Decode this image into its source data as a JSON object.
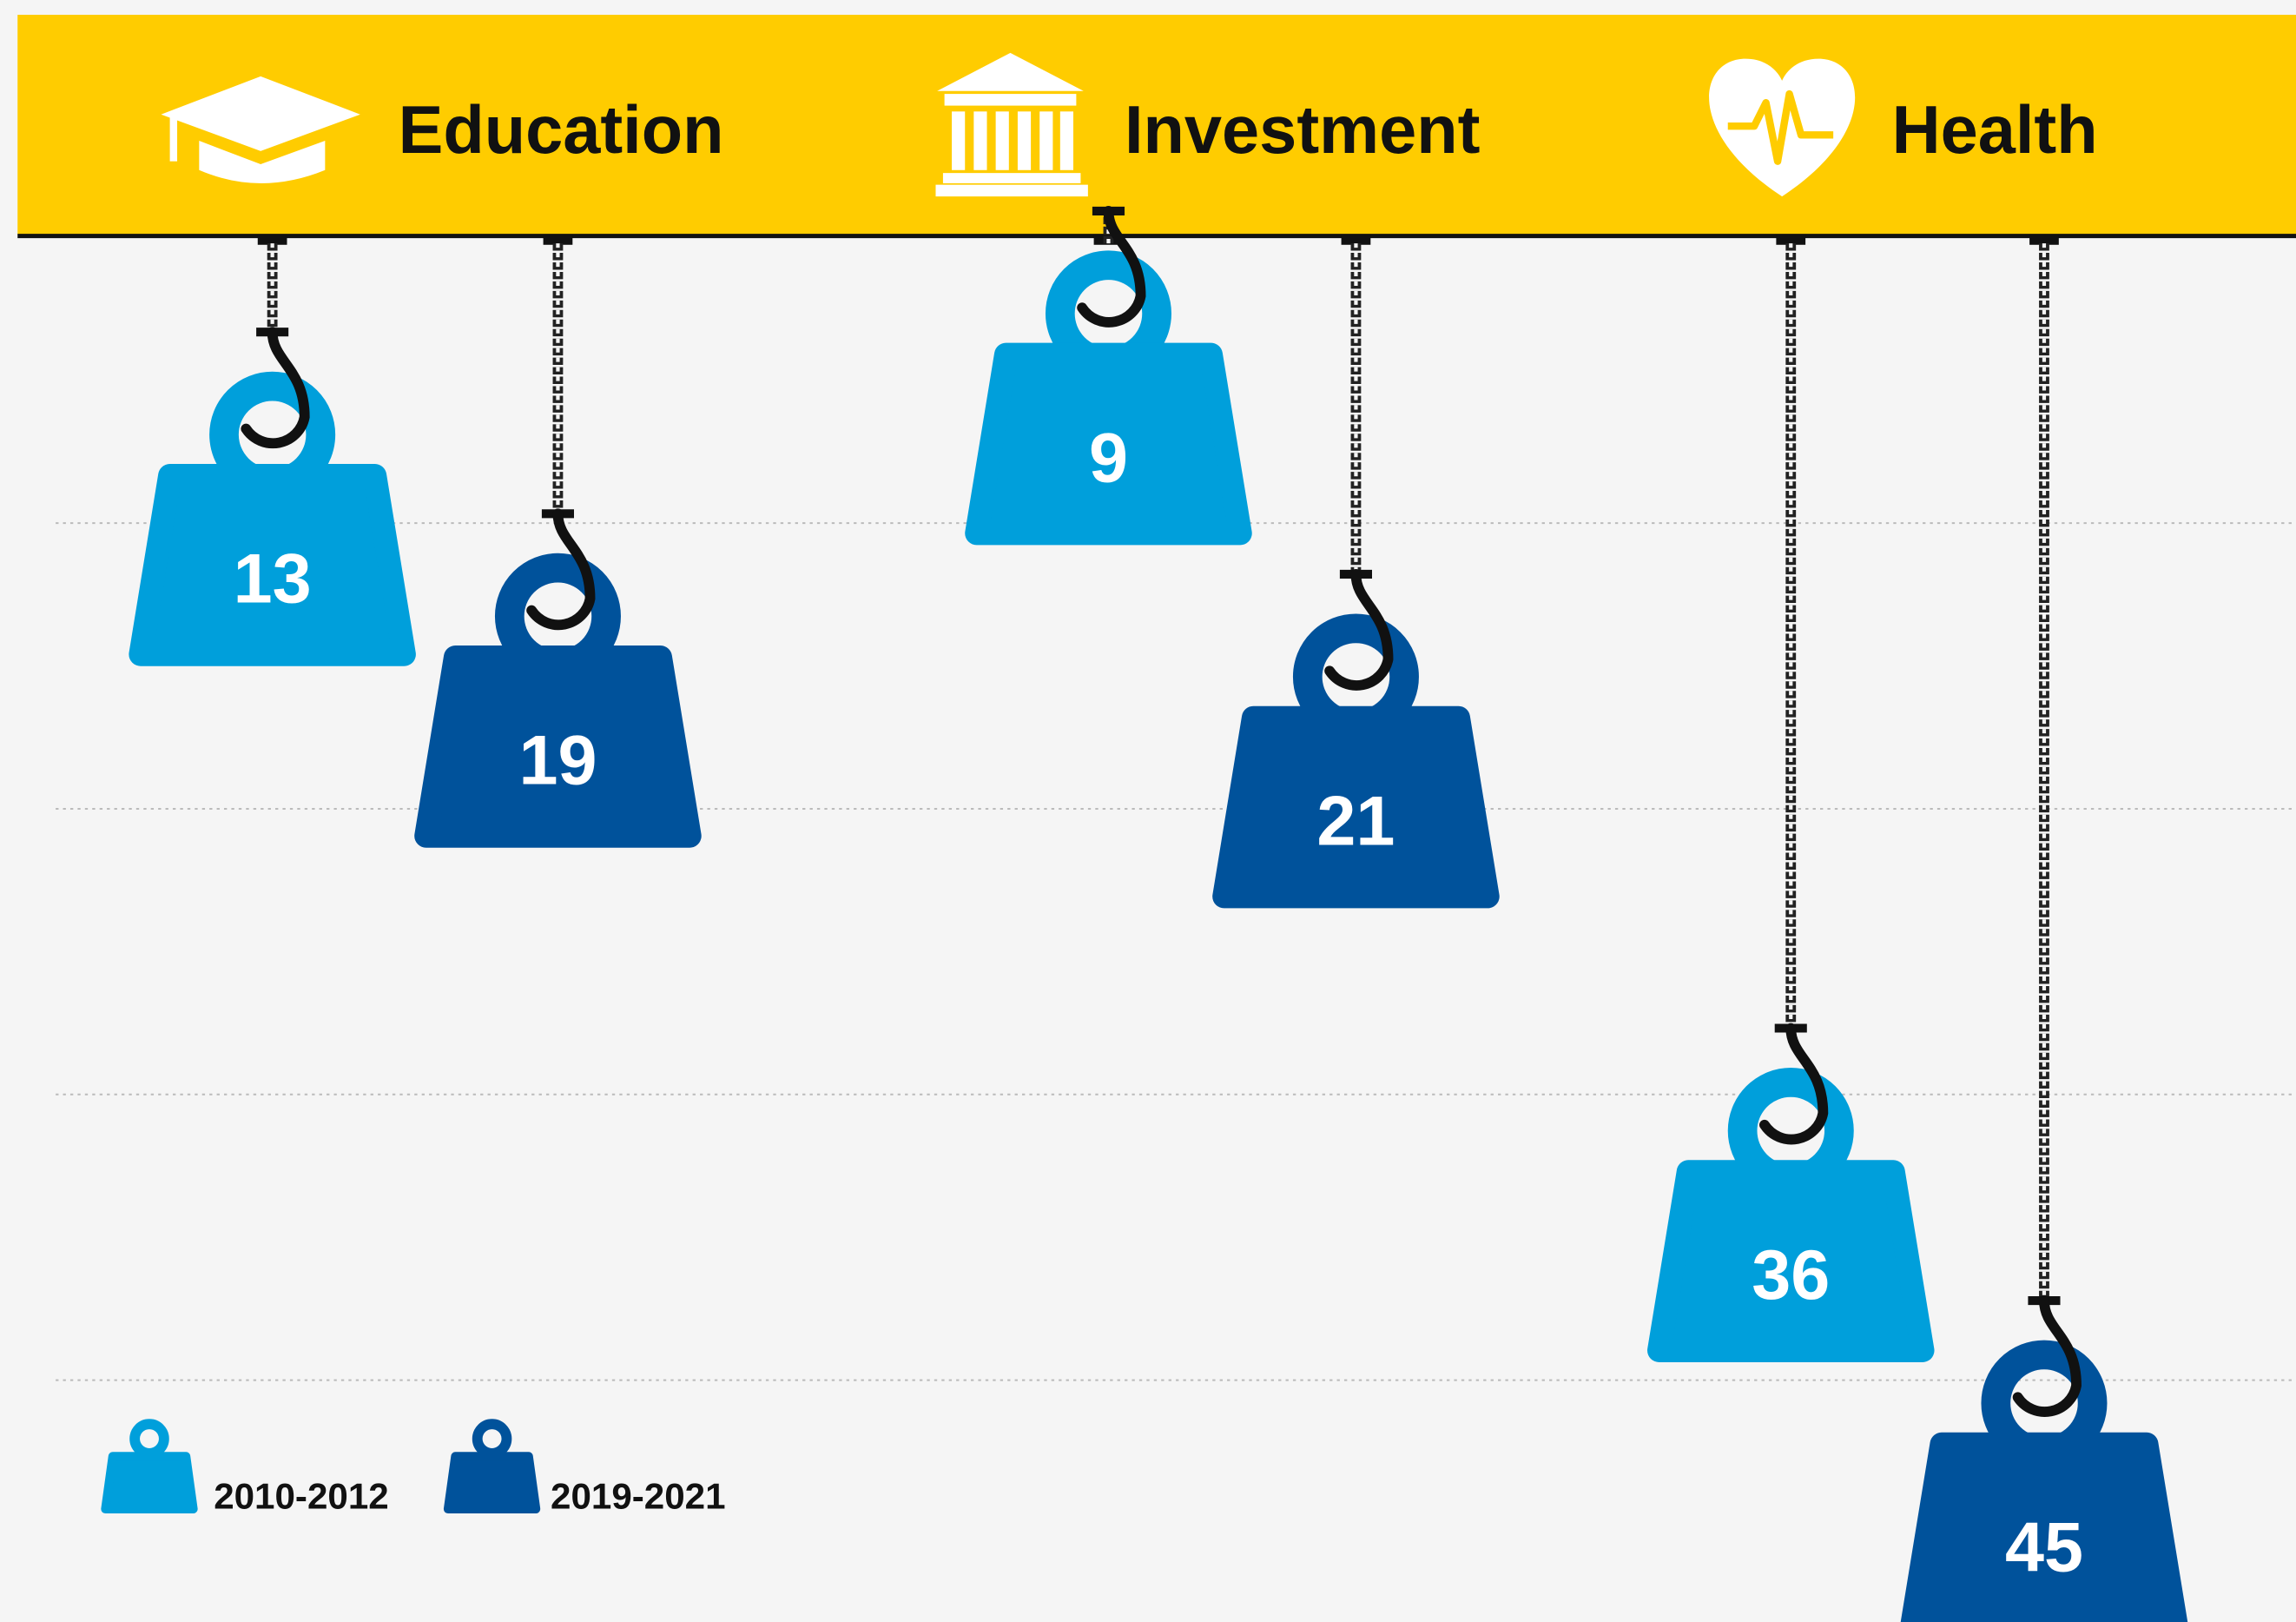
{
  "chart_data": {
    "type": "hanging-weight",
    "categories": [
      "Education",
      "Investment",
      "Health"
    ],
    "series": [
      {
        "name": "2010-2012",
        "color": "#009fdb",
        "values": [
          13,
          9,
          36
        ]
      },
      {
        "name": "2019-2021",
        "color": "#00529b",
        "values": [
          19,
          21,
          45
        ]
      }
    ],
    "grid": true,
    "header_color": "#ffcc00"
  }
}
